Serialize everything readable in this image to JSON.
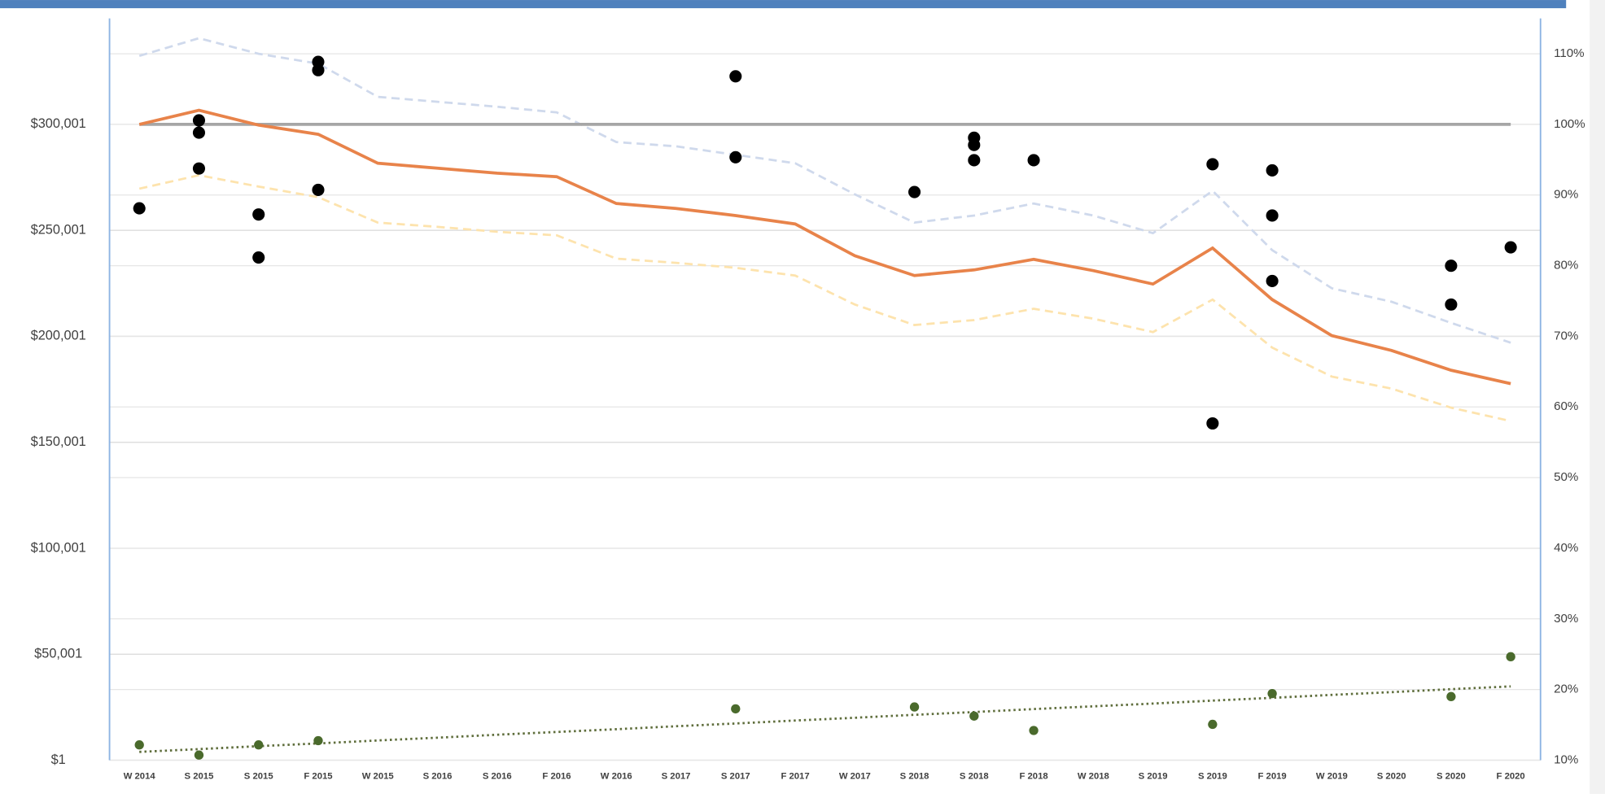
{
  "chart_data": {
    "type": "combo",
    "categories": [
      "W 2014",
      "S 2015",
      "S 2015",
      "F 2015",
      "W 2015",
      "S 2016",
      "S 2016",
      "F 2016",
      "W 2016",
      "S 2017",
      "S 2017",
      "F 2017",
      "W 2017",
      "S 2018",
      "S 2018",
      "F 2018",
      "W 2018",
      "S 2019",
      "S 2019",
      "F 2019",
      "W 2019",
      "S 2020",
      "S 2020",
      "F 2020"
    ],
    "ylim": [
      1,
      350001
    ],
    "yticks": [
      {
        "value": 1,
        "label": "$1"
      },
      {
        "value": 50001,
        "label": "$50,001"
      },
      {
        "value": 100001,
        "label": "$100,001"
      },
      {
        "value": 150001,
        "label": "$150,001"
      },
      {
        "value": 200001,
        "label": "$200,001"
      },
      {
        "value": 250001,
        "label": "$250,001"
      },
      {
        "value": 300001,
        "label": "$300,001"
      }
    ],
    "y2lim": [
      10,
      115
    ],
    "y2ticks": [
      {
        "value": 10,
        "label": "10%"
      },
      {
        "value": 20,
        "label": "20%"
      },
      {
        "value": 30,
        "label": "30%"
      },
      {
        "value": 40,
        "label": "40%"
      },
      {
        "value": 50,
        "label": "50%"
      },
      {
        "value": 60,
        "label": "60%"
      },
      {
        "value": 70,
        "label": "70%"
      },
      {
        "value": 80,
        "label": "80%"
      },
      {
        "value": 90,
        "label": "90%"
      },
      {
        "value": 100,
        "label": "100%"
      },
      {
        "value": 110,
        "label": "110%"
      }
    ],
    "grid": true,
    "series": [
      {
        "type": "line",
        "style": "dashed",
        "axis": "y2",
        "color": "#cfd9ec",
        "values": [
          109.7,
          112.2,
          110.0,
          108.6,
          103.9,
          103.2,
          102.5,
          101.7,
          97.5,
          96.9,
          95.7,
          94.5,
          90.1,
          86.1,
          87.1,
          88.8,
          87.1,
          84.6,
          90.6,
          82.2,
          76.8,
          74.9,
          71.9,
          69.1
        ]
      },
      {
        "type": "line",
        "style": "dashed",
        "axis": "y2",
        "color": "#fde3ad",
        "values": [
          90.9,
          92.8,
          91.2,
          89.7,
          86.1,
          85.5,
          84.8,
          84.3,
          81.0,
          80.4,
          79.7,
          78.6,
          74.5,
          71.6,
          72.3,
          73.9,
          72.5,
          70.6,
          75.2,
          68.4,
          64.3,
          62.6,
          59.9,
          58.0
        ]
      },
      {
        "type": "line",
        "style": "solid",
        "axis": "y2",
        "color": "#a6a6a6",
        "values": [
          100,
          100,
          100,
          100,
          100,
          100,
          100,
          100,
          100,
          100,
          100,
          100,
          100,
          100,
          100,
          100,
          100,
          100,
          100,
          100,
          100,
          100,
          100,
          100
        ]
      },
      {
        "type": "line",
        "style": "solid",
        "axis": "y2",
        "color": "#e8834a",
        "values": [
          100,
          102.0,
          99.9,
          98.6,
          94.5,
          93.8,
          93.1,
          92.6,
          88.8,
          88.1,
          87.1,
          85.9,
          81.4,
          78.6,
          79.4,
          80.9,
          79.3,
          77.4,
          82.5,
          75.2,
          70.1,
          68.0,
          65.2,
          63.3
        ]
      },
      {
        "type": "line",
        "style": "dotted",
        "color": "#5f6e3c",
        "values": [
          3900,
          5200,
          6600,
          7900,
          9300,
          10600,
          12000,
          13300,
          14600,
          16000,
          17300,
          18700,
          20000,
          21400,
          22700,
          24100,
          25400,
          26700,
          28100,
          29400,
          30800,
          32100,
          33500,
          34800
        ]
      },
      {
        "type": "scatter",
        "size": 6,
        "color": "#000000",
        "values": [
          260400,
          301900,
          257500,
          329500,
          null,
          null,
          null,
          null,
          null,
          null,
          322700,
          null,
          null,
          268100,
          293700,
          283100,
          null,
          null,
          281200,
          278300,
          null,
          null,
          233300,
          242000
        ]
      },
      {
        "type": "scatter",
        "size": 6,
        "color": "#000000",
        "values": [
          null,
          296100,
          237200,
          325600,
          null,
          null,
          null,
          null,
          null,
          null,
          284500,
          null,
          null,
          null,
          290300,
          null,
          null,
          null,
          158900,
          257000,
          null,
          null,
          215000,
          null
        ]
      },
      {
        "type": "scatter",
        "size": 6,
        "color": "#000000",
        "values": [
          null,
          279200,
          null,
          269100,
          null,
          null,
          null,
          null,
          null,
          null,
          null,
          null,
          null,
          null,
          283100,
          null,
          null,
          null,
          null,
          226100,
          null,
          null,
          null,
          null
        ]
      },
      {
        "type": "scatter",
        "size": 4.5,
        "color": "#4a6a2c",
        "values": [
          7200,
          2400,
          7200,
          9200,
          null,
          null,
          null,
          null,
          null,
          null,
          24200,
          null,
          null,
          25100,
          20800,
          14000,
          null,
          null,
          16900,
          31400,
          null,
          null,
          30000,
          48800
        ]
      }
    ]
  }
}
